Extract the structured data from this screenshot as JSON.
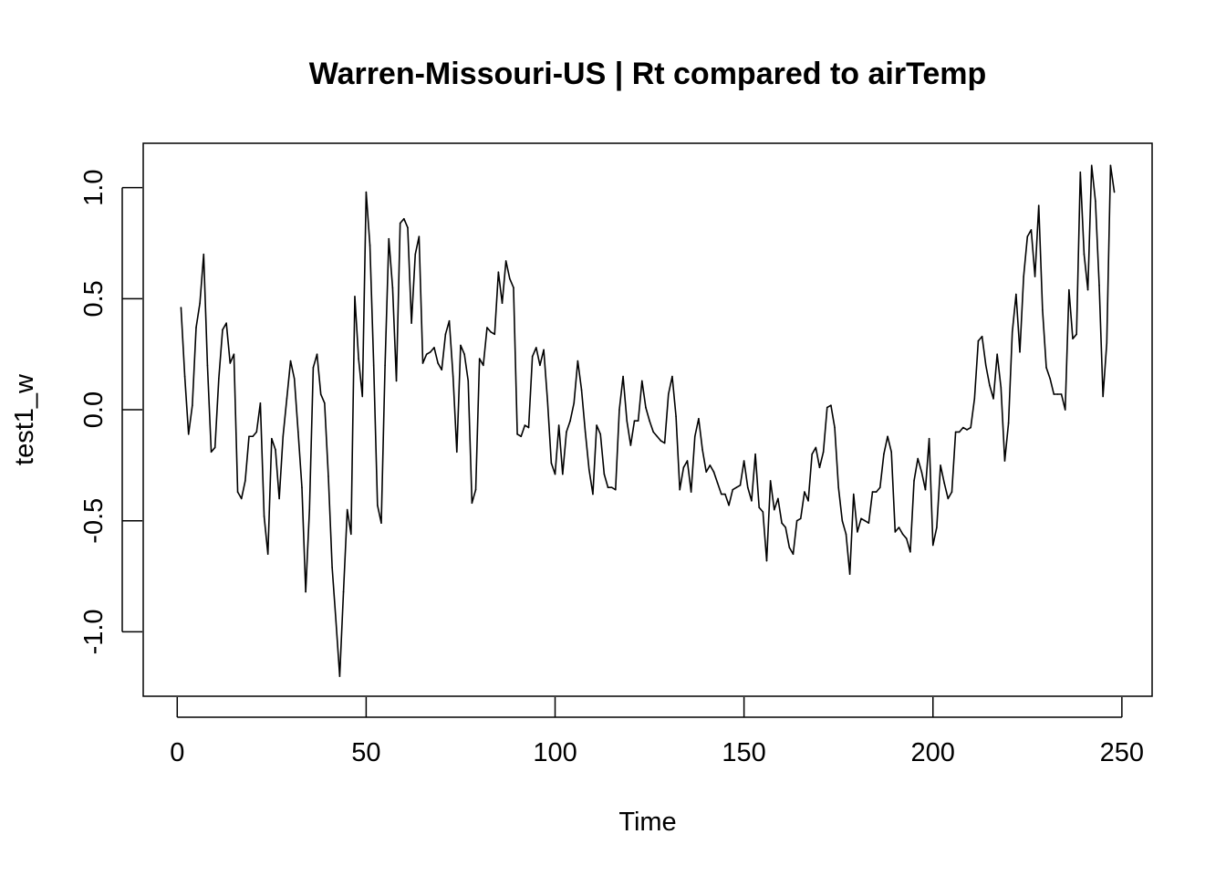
{
  "chart_data": {
    "type": "line",
    "title": "Warren-Missouri-US | Rt compared to airTemp",
    "xlabel": "Time",
    "ylabel": "test1_w",
    "xlim": [
      -9,
      258
    ],
    "ylim": [
      -1.29,
      1.2
    ],
    "xticks": [
      0,
      50,
      100,
      150,
      200,
      250
    ],
    "yticks": [
      -1.0,
      -0.5,
      0.0,
      0.5,
      1.0
    ],
    "xtick_labels": [
      "0",
      "50",
      "100",
      "150",
      "200",
      "250"
    ],
    "ytick_labels": [
      "-1.0",
      "-0.5",
      "0.0",
      "0.5",
      "1.0"
    ],
    "grid": false,
    "series": [
      {
        "values": [
          0.46,
          0.15,
          -0.11,
          0.02,
          0.37,
          0.48,
          0.7,
          0.2,
          -0.19,
          -0.17,
          0.14,
          0.36,
          0.39,
          0.21,
          0.25,
          -0.37,
          -0.4,
          -0.32,
          -0.12,
          -0.12,
          -0.1,
          0.03,
          -0.48,
          -0.65,
          -0.13,
          -0.18,
          -0.4,
          -0.12,
          0.05,
          0.22,
          0.14,
          -0.1,
          -0.35,
          -0.82,
          -0.45,
          0.19,
          0.25,
          0.07,
          0.03,
          -0.3,
          -0.71,
          -0.95,
          -1.2,
          -0.82,
          -0.45,
          -0.56,
          0.51,
          0.23,
          0.06,
          0.98,
          0.74,
          0.2,
          -0.43,
          -0.51,
          0.2,
          0.77,
          0.55,
          0.13,
          0.84,
          0.86,
          0.82,
          0.39,
          0.7,
          0.78,
          0.21,
          0.25,
          0.26,
          0.28,
          0.21,
          0.18,
          0.34,
          0.4,
          0.15,
          -0.19,
          0.29,
          0.25,
          0.13,
          -0.42,
          -0.36,
          0.23,
          0.2,
          0.37,
          0.35,
          0.34,
          0.62,
          0.48,
          0.67,
          0.59,
          0.55,
          -0.11,
          -0.12,
          -0.07,
          -0.08,
          0.24,
          0.28,
          0.2,
          0.27,
          0.04,
          -0.24,
          -0.29,
          -0.07,
          -0.29,
          -0.1,
          -0.05,
          0.03,
          0.22,
          0.09,
          -0.1,
          -0.27,
          -0.38,
          -0.07,
          -0.11,
          -0.29,
          -0.35,
          -0.35,
          -0.36,
          0.0,
          0.15,
          -0.05,
          -0.16,
          -0.05,
          -0.05,
          0.13,
          0.01,
          -0.05,
          -0.1,
          -0.12,
          -0.14,
          -0.15,
          0.07,
          0.15,
          -0.03,
          -0.36,
          -0.26,
          -0.23,
          -0.37,
          -0.12,
          -0.04,
          -0.18,
          -0.28,
          -0.25,
          -0.28,
          -0.33,
          -0.38,
          -0.38,
          -0.43,
          -0.36,
          -0.35,
          -0.34,
          -0.23,
          -0.35,
          -0.41,
          -0.2,
          -0.44,
          -0.46,
          -0.68,
          -0.32,
          -0.45,
          -0.4,
          -0.51,
          -0.53,
          -0.62,
          -0.65,
          -0.5,
          -0.49,
          -0.37,
          -0.41,
          -0.2,
          -0.17,
          -0.26,
          -0.19,
          0.01,
          0.02,
          -0.08,
          -0.35,
          -0.5,
          -0.56,
          -0.74,
          -0.38,
          -0.55,
          -0.49,
          -0.5,
          -0.51,
          -0.37,
          -0.37,
          -0.35,
          -0.2,
          -0.12,
          -0.19,
          -0.55,
          -0.53,
          -0.56,
          -0.58,
          -0.64,
          -0.32,
          -0.22,
          -0.28,
          -0.36,
          -0.13,
          -0.61,
          -0.53,
          -0.25,
          -0.33,
          -0.4,
          -0.37,
          -0.1,
          -0.1,
          -0.08,
          -0.09,
          -0.08,
          0.05,
          0.31,
          0.33,
          0.2,
          0.11,
          0.05,
          0.25,
          0.1,
          -0.23,
          -0.06,
          0.35,
          0.52,
          0.26,
          0.6,
          0.78,
          0.81,
          0.6,
          0.92,
          0.45,
          0.19,
          0.14,
          0.07,
          0.07,
          0.07,
          0.0,
          0.54,
          0.32,
          0.34,
          1.07,
          0.7,
          0.54,
          1.1,
          0.94,
          0.56,
          0.06,
          0.3,
          1.1,
          0.98
        ]
      }
    ]
  }
}
